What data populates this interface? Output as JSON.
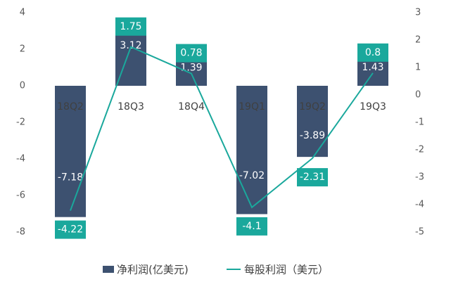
{
  "chart_data": {
    "type": "bar_line",
    "categories": [
      "18Q2",
      "18Q3",
      "18Q4",
      "19Q1",
      "19Q2",
      "19Q3"
    ],
    "series": [
      {
        "name": "净利润(亿美元)",
        "color": "#3d5170",
        "values": [
          -7.18,
          3.12,
          1.39,
          -7.02,
          -3.89,
          1.43
        ]
      },
      {
        "name": "每股利润（美元）",
        "color": "#1aa89c",
        "axis": "y2",
        "values": [
          -4.22,
          1.75,
          0.78,
          -4.1,
          -2.31,
          0.8
        ]
      }
    ],
    "ylim": [
      -8,
      4
    ],
    "yticks": [
      -8,
      -6,
      -4,
      -2,
      0,
      2,
      4
    ],
    "y2lim": [
      -5,
      3
    ],
    "y2ticks": [
      -5,
      -4,
      -3,
      -2,
      -1,
      0,
      1,
      2,
      3
    ],
    "legend": "bottom"
  }
}
